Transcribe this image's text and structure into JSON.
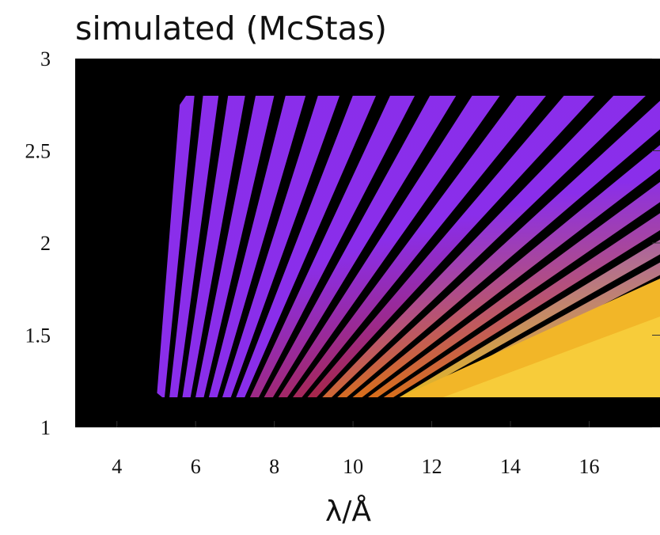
{
  "chart_data": {
    "type": "heatmap",
    "title": "simulated (McStas)",
    "x_label": "λ/Å",
    "xlim": [
      3,
      17.8
    ],
    "ylim": [
      1,
      3
    ],
    "xticks": [
      4,
      6,
      8,
      10,
      12,
      14,
      16
    ],
    "yticks": [
      1,
      1.5,
      2,
      2.5,
      3
    ]
  }
}
